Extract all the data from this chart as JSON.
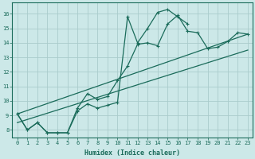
{
  "title": "",
  "xlabel": "Humidex (Indice chaleur)",
  "bg_color": "#cce8e8",
  "grid_color": "#aacccc",
  "line_color": "#1a6b5a",
  "xlim": [
    -0.5,
    23.5
  ],
  "ylim": [
    7.5,
    16.8
  ],
  "xticks": [
    0,
    1,
    2,
    3,
    4,
    5,
    6,
    7,
    8,
    9,
    10,
    11,
    12,
    13,
    14,
    15,
    16,
    17,
    18,
    19,
    20,
    21,
    22,
    23
  ],
  "yticks": [
    8,
    9,
    10,
    11,
    12,
    13,
    14,
    15,
    16
  ],
  "series1": [
    9.1,
    8.0,
    8.5,
    7.8,
    7.8,
    7.8,
    9.5,
    10.5,
    10.1,
    10.3,
    11.4,
    12.4,
    13.9,
    14.0,
    13.8,
    15.3,
    15.9,
    14.8,
    14.7,
    13.6,
    13.7,
    14.1,
    14.7,
    14.6
  ],
  "series2": [
    9.1,
    8.0,
    8.5,
    7.8,
    7.8,
    7.8,
    9.3,
    9.8,
    9.5,
    9.7,
    9.9,
    15.8,
    14.0,
    15.0,
    16.1,
    16.3,
    15.8,
    15.3,
    null,
    null,
    null,
    null,
    null,
    null
  ],
  "line1_x": [
    0,
    23
  ],
  "line1_y": [
    9.1,
    14.6
  ],
  "line2_x": [
    0,
    23
  ],
  "line2_y": [
    8.5,
    13.5
  ],
  "xlabel_fontsize": 6,
  "tick_fontsize": 5
}
